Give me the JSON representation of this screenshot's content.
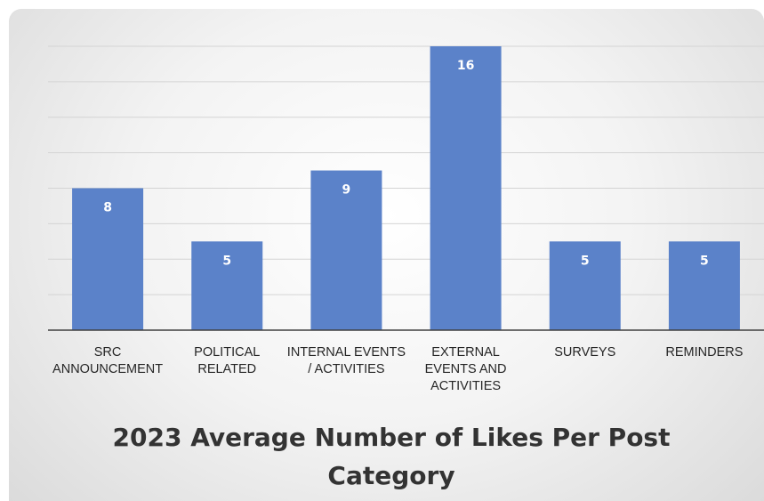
{
  "chart_data": {
    "type": "bar",
    "title_lines": [
      "2023 Average Number of Likes Per Post",
      "Category"
    ],
    "categories": [
      [
        "SRC",
        "ANNOUNCEMENT"
      ],
      [
        "POLITICAL",
        "RELATED"
      ],
      [
        "INTERNAL EVENTS",
        "/ ACTIVITIES"
      ],
      [
        "EXTERNAL",
        "EVENTS AND",
        "ACTIVITIES"
      ],
      [
        "SURVEYS"
      ],
      [
        "REMINDERS"
      ]
    ],
    "values": [
      8,
      5,
      9,
      16,
      5,
      5
    ],
    "ylim": [
      0,
      16
    ],
    "grid": true,
    "bar_color": "#5b82c9",
    "grid_color": "#d4d4d4",
    "axis_color": "#404040"
  }
}
